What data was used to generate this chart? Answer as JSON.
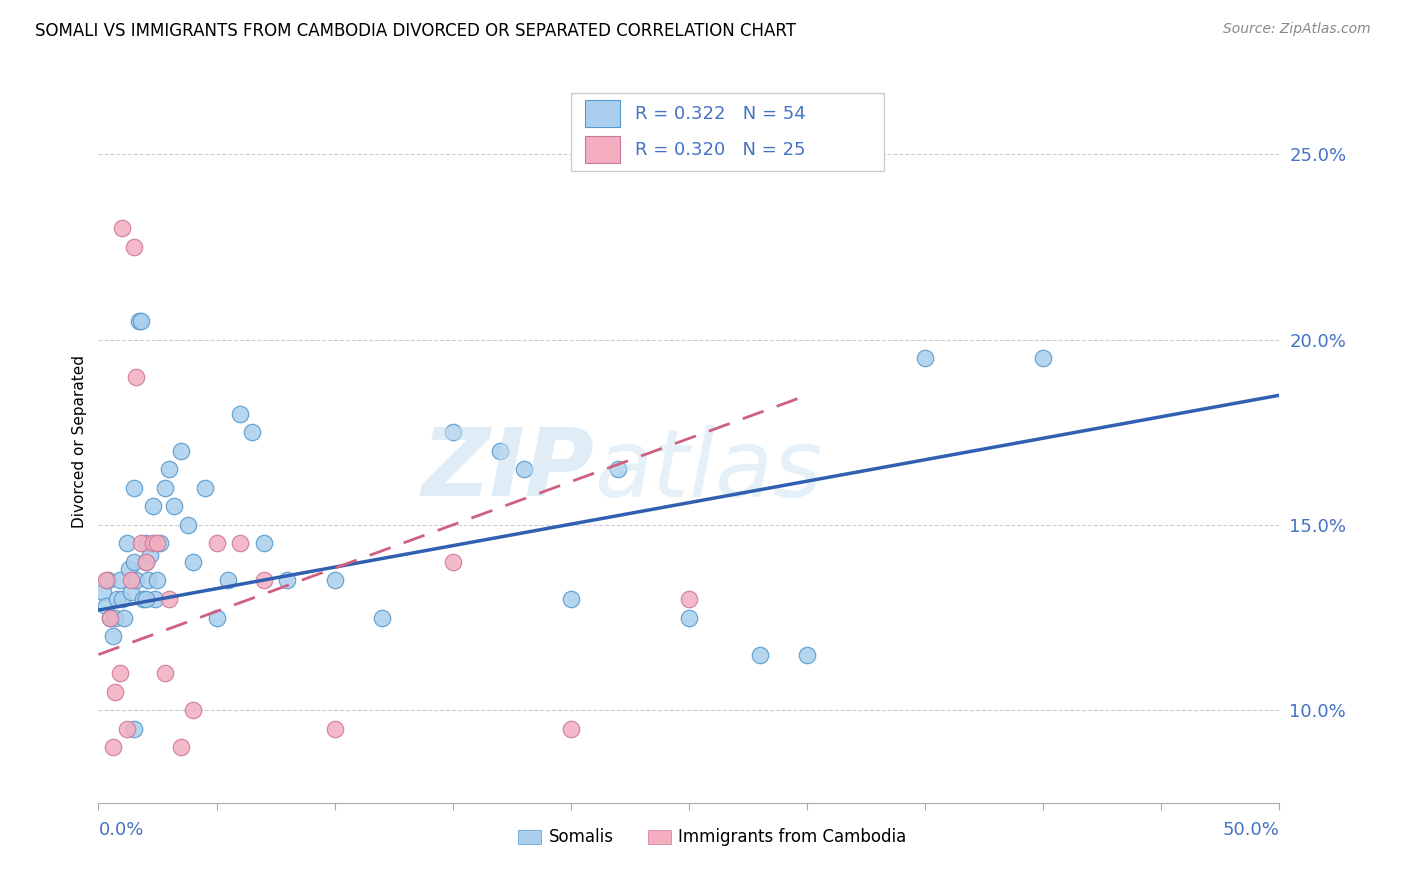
{
  "title": "SOMALI VS IMMIGRANTS FROM CAMBODIA DIVORCED OR SEPARATED CORRELATION CHART",
  "source": "Source: ZipAtlas.com",
  "ylabel": "Divorced or Separated",
  "xlim": [
    0.0,
    50.0
  ],
  "ylim": [
    7.5,
    27.0
  ],
  "yticks": [
    10.0,
    15.0,
    20.0,
    25.0
  ],
  "color_somali_fill": "#aacfee",
  "color_somali_edge": "#5599cc",
  "color_cambodia_fill": "#f4aec0",
  "color_cambodia_edge": "#cc7799",
  "color_blue_text": "#4472C4",
  "color_trend_blue": "#3060b0",
  "color_trend_pink": "#d06080",
  "somali_x": [
    0.2,
    0.3,
    0.4,
    0.5,
    0.6,
    0.7,
    0.8,
    0.9,
    1.0,
    1.1,
    1.2,
    1.3,
    1.4,
    1.5,
    1.5,
    1.6,
    1.7,
    1.8,
    1.9,
    2.0,
    2.0,
    2.1,
    2.2,
    2.3,
    2.4,
    2.5,
    2.6,
    2.8,
    3.0,
    3.2,
    3.5,
    3.8,
    4.0,
    4.5,
    5.0,
    5.5,
    6.0,
    6.5,
    7.0,
    8.0,
    10.0,
    12.0,
    15.0,
    17.0,
    18.0,
    20.0,
    22.0,
    25.0,
    28.0,
    30.0,
    35.0,
    40.0,
    1.5,
    2.0
  ],
  "somali_y": [
    13.2,
    12.8,
    13.5,
    12.5,
    12.0,
    12.5,
    13.0,
    13.5,
    13.0,
    12.5,
    14.5,
    13.8,
    13.2,
    14.0,
    16.0,
    13.5,
    20.5,
    20.5,
    13.0,
    14.0,
    14.5,
    13.5,
    14.2,
    15.5,
    13.0,
    13.5,
    14.5,
    16.0,
    16.5,
    15.5,
    17.0,
    15.0,
    14.0,
    16.0,
    12.5,
    13.5,
    18.0,
    17.5,
    14.5,
    13.5,
    13.5,
    12.5,
    17.5,
    17.0,
    16.5,
    13.0,
    16.5,
    12.5,
    11.5,
    11.5,
    19.5,
    19.5,
    9.5,
    13.0
  ],
  "cambodia_x": [
    0.3,
    0.5,
    0.7,
    0.9,
    1.0,
    1.2,
    1.4,
    1.6,
    1.8,
    2.0,
    2.3,
    2.5,
    3.0,
    3.5,
    4.0,
    5.0,
    6.0,
    7.0,
    10.0,
    15.0,
    20.0,
    0.6,
    1.5,
    2.8,
    25.0
  ],
  "cambodia_y": [
    13.5,
    12.5,
    10.5,
    11.0,
    23.0,
    9.5,
    13.5,
    19.0,
    14.5,
    14.0,
    14.5,
    14.5,
    13.0,
    9.0,
    10.0,
    14.5,
    14.5,
    13.5,
    9.5,
    14.0,
    9.5,
    9.0,
    22.5,
    11.0,
    13.0
  ],
  "trend_blue_x0": 0.0,
  "trend_blue_y0": 12.7,
  "trend_blue_x1": 50.0,
  "trend_blue_y1": 18.5,
  "trend_pink_x0": 0.0,
  "trend_pink_y0": 11.5,
  "trend_pink_x1": 30.0,
  "trend_pink_y1": 18.5
}
